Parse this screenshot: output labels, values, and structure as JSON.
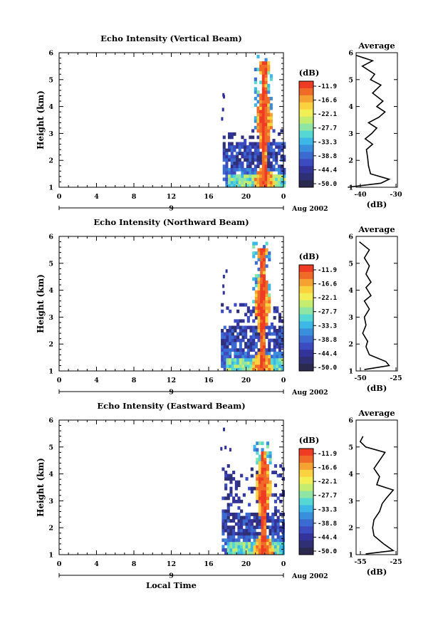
{
  "figure": {
    "xlabel": "Local Time",
    "date_label": "Aug 2002",
    "date_day_label": "9",
    "colorbar_unit": "(dB)",
    "colorbar_ticks": [
      "-11.9",
      "-16.6",
      "-22.1",
      "-27.7",
      "-33.3",
      "-38.8",
      "-44.4",
      "-50.0"
    ],
    "colorbar_colors": [
      "#ef3b24",
      "#f06a28",
      "#f4a232",
      "#fad23f",
      "#f2ee55",
      "#c4ec6e",
      "#8fe6a4",
      "#55d8d3",
      "#3db7e6",
      "#3a8fdc",
      "#3b6ad0",
      "#3c4bbf",
      "#33339a",
      "#2e2f74",
      "#2b2a4e"
    ],
    "average_title": "Average",
    "average_xlabel": "(dB)"
  },
  "chart_data": [
    {
      "type": "heatmap",
      "title": "Echo Intensity (Vertical Beam)",
      "ylabel": "Height (km)",
      "x_range": [
        0,
        24
      ],
      "x_ticks": [
        "0",
        "4",
        "8",
        "12",
        "16",
        "20",
        "0"
      ],
      "y_range": [
        1,
        6
      ],
      "y_ticks": [
        "1",
        "2",
        "3",
        "4",
        "5",
        "6"
      ],
      "echo": {
        "start_hour": 17.5,
        "core_hour": 21.8,
        "core_top_km": 5.6,
        "low_layer_top_km": 2.6,
        "high_detection_top_km": 3.1
      },
      "average": {
        "xlim": [
          -40,
          -30
        ],
        "x_ticks": [
          "-40",
          "-30"
        ],
        "profile": [
          [
            -42,
            1.0
          ],
          [
            -34,
            1.15
          ],
          [
            -32,
            1.3
          ],
          [
            -36.5,
            1.5
          ],
          [
            -37,
            1.8
          ],
          [
            -37.2,
            2.1
          ],
          [
            -37.5,
            2.4
          ],
          [
            -36,
            2.6
          ],
          [
            -37.8,
            2.8
          ],
          [
            -36.2,
            3.0
          ],
          [
            -35,
            3.2
          ],
          [
            -37,
            3.4
          ],
          [
            -34.5,
            3.6
          ],
          [
            -33,
            3.8
          ],
          [
            -35,
            4.0
          ],
          [
            -33.5,
            4.2
          ],
          [
            -36,
            4.5
          ],
          [
            -34,
            4.8
          ],
          [
            -36.5,
            5.0
          ],
          [
            -35.5,
            5.2
          ],
          [
            -38.5,
            5.5
          ],
          [
            -36,
            5.7
          ],
          [
            -40,
            5.9
          ]
        ]
      }
    },
    {
      "type": "heatmap",
      "title": "Echo Intensity (Northward Beam)",
      "ylabel": "Height (km)",
      "x_range": [
        0,
        24
      ],
      "x_ticks": [
        "0",
        "4",
        "8",
        "12",
        "16",
        "20",
        "0"
      ],
      "y_range": [
        1,
        6
      ],
      "y_ticks": [
        "1",
        "2",
        "3",
        "4",
        "5",
        "6"
      ],
      "echo": {
        "start_hour": 17.3,
        "core_hour": 21.6,
        "core_top_km": 5.5,
        "low_layer_top_km": 2.6,
        "high_detection_top_km": 3.5
      },
      "average": {
        "xlim": [
          -50,
          -25
        ],
        "x_ticks": [
          "-50",
          "-25"
        ],
        "profile": [
          [
            -45,
            1.05
          ],
          [
            -30,
            1.2
          ],
          [
            -32,
            1.35
          ],
          [
            -42,
            1.6
          ],
          [
            -44,
            1.9
          ],
          [
            -43,
            2.1
          ],
          [
            -46,
            2.4
          ],
          [
            -44,
            2.7
          ],
          [
            -45,
            3.0
          ],
          [
            -42,
            3.3
          ],
          [
            -45,
            3.6
          ],
          [
            -41,
            3.8
          ],
          [
            -44,
            4.1
          ],
          [
            -41,
            4.3
          ],
          [
            -44,
            4.6
          ],
          [
            -42,
            4.9
          ],
          [
            -45,
            5.2
          ],
          [
            -42,
            5.5
          ],
          [
            -48,
            5.8
          ]
        ]
      }
    },
    {
      "type": "heatmap",
      "title": "Echo Intensity (Eastward Beam)",
      "ylabel": "Height (km)",
      "x_range": [
        0,
        24
      ],
      "x_ticks": [
        "0",
        "4",
        "8",
        "12",
        "16",
        "20",
        "0"
      ],
      "y_range": [
        1,
        6
      ],
      "y_ticks": [
        "1",
        "2",
        "3",
        "4",
        "5",
        "6"
      ],
      "echo": {
        "start_hour": 17.4,
        "core_hour": 21.7,
        "core_top_km": 4.8,
        "low_layer_top_km": 2.5,
        "high_detection_top_km": 4.3
      },
      "average": {
        "xlim": [
          -55,
          -25
        ],
        "x_ticks": [
          "-55",
          "-25"
        ],
        "profile": [
          [
            -48,
            1.03
          ],
          [
            -28,
            1.15
          ],
          [
            -35,
            1.4
          ],
          [
            -42,
            1.7
          ],
          [
            -43,
            2.0
          ],
          [
            -42,
            2.3
          ],
          [
            -38,
            2.6
          ],
          [
            -36,
            2.9
          ],
          [
            -33,
            3.1
          ],
          [
            -28,
            3.4
          ],
          [
            -40,
            3.6
          ],
          [
            -38,
            3.9
          ],
          [
            -42,
            4.2
          ],
          [
            -38,
            4.5
          ],
          [
            -34,
            4.8
          ],
          [
            -48,
            5.0
          ],
          [
            -52,
            5.2
          ],
          [
            -50,
            5.4
          ]
        ]
      }
    }
  ]
}
